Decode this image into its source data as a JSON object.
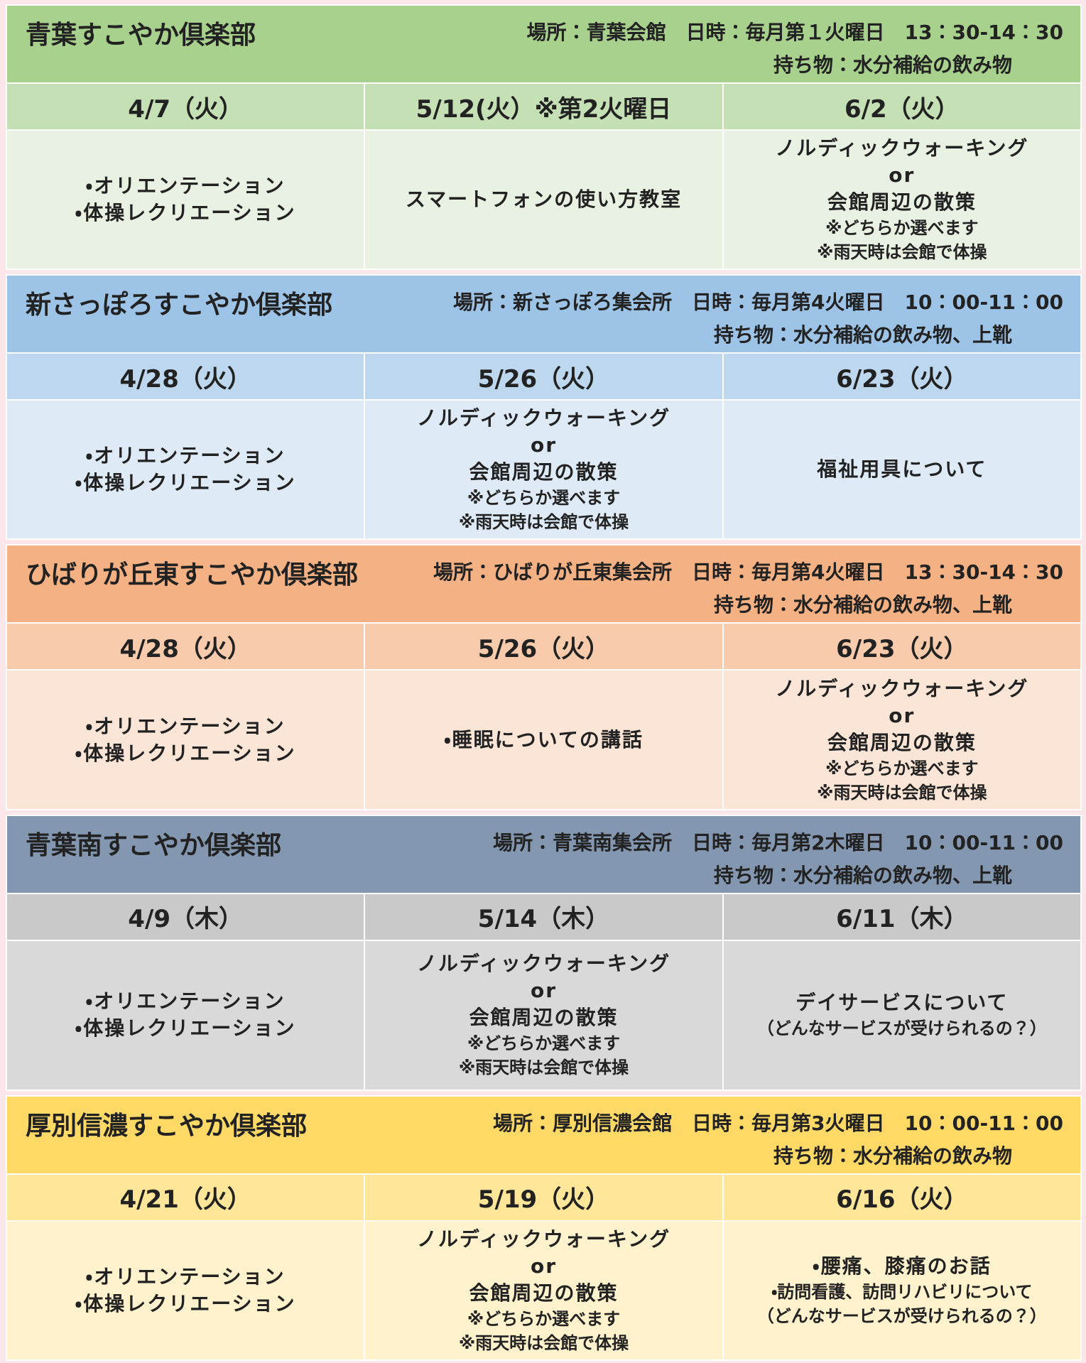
{
  "sections": [
    {
      "title": "青葉すこやか倶楽部",
      "info": "場所：青葉会館　日時：毎月第１火曜日　13：30-14：30",
      "items": "持ち物：水分補給の飲み物",
      "colors": [
        "#a9d18e",
        "#c5e0b4",
        "#e9f1e3"
      ],
      "dates": [
        "4/7（火）",
        "5/12(火）※第2火曜日",
        "6/2（火）"
      ],
      "cells": [
        {
          "main": [
            "・オリエンテーション",
            "・体操レクリエーション"
          ],
          "sub": []
        },
        {
          "main": [
            "スマートフォンの使い方教室"
          ],
          "sub": []
        },
        {
          "main": [
            "ノルディックウォーキング",
            "or",
            "会館周辺の散策"
          ],
          "sub": [
            "※どちらか選べます",
            "※雨天時は会館で体操"
          ]
        }
      ]
    },
    {
      "title": "新さっぽろすこやか倶楽部",
      "info": "場所：新さっぽろ集会所　日時：毎月第4火曜日　10：00-11：00",
      "items": "持ち物：水分補給の飲み物、上靴",
      "colors": [
        "#9dc3e6",
        "#bdd7ee",
        "#deebf7"
      ],
      "dates": [
        "4/28（火）",
        "5/26（火）",
        "6/23（火）"
      ],
      "cells": [
        {
          "main": [
            "・オリエンテーション",
            "・体操レクリエーション"
          ],
          "sub": []
        },
        {
          "main": [
            "ノルディックウォーキング",
            "or",
            "会館周辺の散策"
          ],
          "sub": [
            "※どちらか選べます",
            "※雨天時は会館で体操"
          ]
        },
        {
          "main": [
            "福祉用具について"
          ],
          "sub": []
        }
      ]
    },
    {
      "title": "ひばりが丘東すこやか倶楽部",
      "info": "場所：ひばりが丘東集会所　日時：毎月第4火曜日　13：30-14：30",
      "items": "持ち物：水分補給の飲み物、上靴",
      "colors": [
        "#f4b183",
        "#f8cbad",
        "#fbe5d6"
      ],
      "dates": [
        "4/28（火）",
        "5/26（火）",
        "6/23（火）"
      ],
      "cells": [
        {
          "main": [
            "・オリエンテーション",
            "・体操レクリエーション"
          ],
          "sub": []
        },
        {
          "main": [
            "・睡眠についての講話"
          ],
          "sub": []
        },
        {
          "main": [
            "ノルディックウォーキング",
            "or",
            "会館周辺の散策"
          ],
          "sub": [
            "※どちらか選べます",
            "※雨天時は会館で体操"
          ]
        }
      ]
    },
    {
      "title": "青葉南すこやか倶楽部",
      "info": "場所：青葉南集会所　日時：毎月第2木曜日　10：00-11：00",
      "items": "持ち物：水分補給の飲み物、上靴",
      "colors": [
        "#8497b0",
        "#c9c9c9",
        "#d9d9d9"
      ],
      "dates": [
        "4/9（木）",
        "5/14（木）",
        "6/11（木）"
      ],
      "cells": [
        {
          "main": [
            "・オリエンテーション",
            "・体操レクリエーション"
          ],
          "sub": []
        },
        {
          "main": [
            "ノルディックウォーキング",
            "or",
            "会館周辺の散策"
          ],
          "sub": [
            "※どちらか選べます",
            "※雨天時は会館で体操"
          ]
        },
        {
          "main": [
            "デイサービスについて"
          ],
          "sub": [
            "（どんなサービスが受けられるの？）"
          ]
        }
      ]
    },
    {
      "title": "厚別信濃すこやか倶楽部",
      "info": "場所：厚別信濃会館　日時：毎月第3火曜日　10：00-11：00",
      "items": "持ち物：水分補給の飲み物",
      "colors": [
        "#ffd966",
        "#ffe699",
        "#fff2cc"
      ],
      "dates": [
        "4/21（火）",
        "5/19（火）",
        "6/16（火）"
      ],
      "cells": [
        {
          "main": [
            "・オリエンテーション",
            "・体操レクリエーション"
          ],
          "sub": []
        },
        {
          "main": [
            "ノルディックウォーキング",
            "or",
            "会館周辺の散策"
          ],
          "sub": [
            "※どちらか選べます",
            "※雨天時は会館で体操"
          ]
        },
        {
          "main": [
            "・腰痛、膝痛のお話"
          ],
          "sub": [
            "・訪問看護、訪問リハビリについて",
            "（どんなサービスが受けられるの？）"
          ]
        }
      ]
    }
  ]
}
